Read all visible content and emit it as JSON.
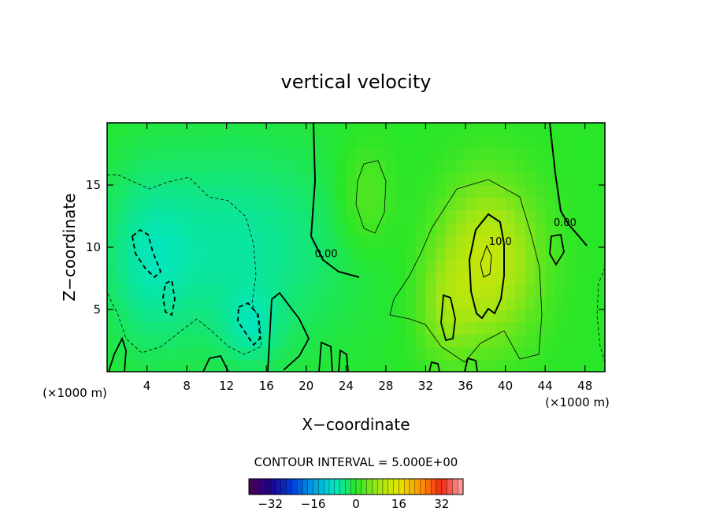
{
  "chart_data": {
    "type": "heatmap",
    "title": "vertical velocity",
    "xlabel": "X−coordinate",
    "ylabel": "Z−coordinate",
    "x_unit": "(×1000 m)",
    "y_unit": "(×1000 m)",
    "xlim": [
      0,
      50
    ],
    "ylim": [
      0,
      20
    ],
    "x_ticks": [
      4,
      8,
      12,
      16,
      20,
      24,
      28,
      32,
      36,
      40,
      44,
      48
    ],
    "x_tick_labels": [
      "4",
      "8",
      "12",
      "16",
      "20",
      "24",
      "28",
      "32",
      "36",
      "40",
      "44",
      "48"
    ],
    "y_ticks": [
      5,
      10,
      15
    ],
    "y_tick_labels": [
      "5",
      "10",
      "15"
    ],
    "contour_interval_text": "CONTOUR INTERVAL = 5.000E+00",
    "contour_labels": [
      {
        "text": "0.00",
        "x": 22.0,
        "y": 9.2
      },
      {
        "text": "10.0",
        "x": 39.5,
        "y": 10.2
      },
      {
        "text": "0.00",
        "x": 46.0,
        "y": 11.7
      }
    ],
    "colorbar": {
      "min": -40,
      "max": 40,
      "ticks": [
        -32,
        -16,
        0,
        16,
        32
      ],
      "tick_labels": [
        "−32",
        "−16",
        "0",
        "16",
        "32"
      ]
    },
    "features": [
      {
        "kind": "downdraft",
        "x": 13,
        "y": 10,
        "sx": 8,
        "sy": 6,
        "w": -6
      },
      {
        "kind": "downdraft",
        "x": 4,
        "y": 9,
        "sx": 3,
        "sy": 5,
        "w": -4
      },
      {
        "kind": "downdraft",
        "x": 14.5,
        "y": 3.5,
        "sx": 2,
        "sy": 2,
        "w": -4
      },
      {
        "kind": "updraft",
        "x": 38.3,
        "y": 9,
        "sx": 3.5,
        "sy": 4.5,
        "w": 12
      },
      {
        "kind": "updraft",
        "x": 34,
        "y": 5,
        "sx": 2,
        "sy": 3,
        "w": 5
      },
      {
        "kind": "updraft",
        "x": 26,
        "y": 14,
        "sx": 2,
        "sy": 3,
        "w": 4
      }
    ]
  }
}
